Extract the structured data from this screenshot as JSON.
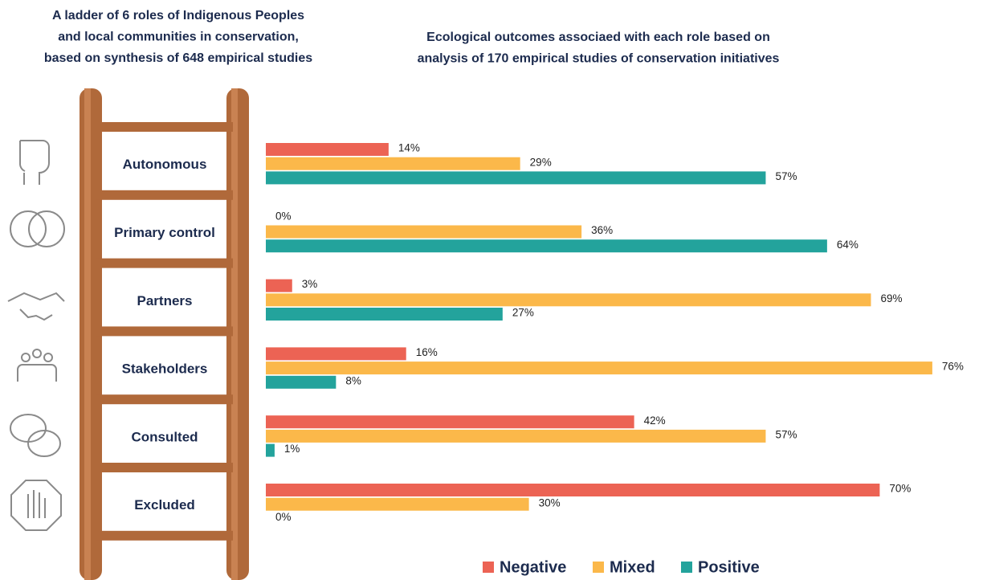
{
  "chart_data": {
    "type": "bar",
    "ladder_title": [
      "A ladder of 6 roles of Indigenous Peoples",
      "and local communities in conservation,",
      "based on synthesis of 648 empirical studies"
    ],
    "title": [
      "Ecological outcomes associaed with each role based on",
      "analysis of 170 empirical studies of conservation initiatives"
    ],
    "categories": [
      "Autonomous",
      "Primary control",
      "Partners",
      "Stakeholders",
      "Consulted",
      "Excluded"
    ],
    "series": [
      {
        "name": "Negative",
        "color": "#ec6354",
        "values": [
          14,
          0,
          3,
          16,
          42,
          70
        ],
        "value_labels": [
          "14%",
          "0%",
          "3%",
          "16%",
          "42%",
          "70%"
        ]
      },
      {
        "name": "Mixed",
        "color": "#fbb84a",
        "values": [
          29,
          36,
          69,
          76,
          57,
          30
        ],
        "value_labels": [
          "29%",
          "36%",
          "69%",
          "76%",
          "57%",
          "30%"
        ]
      },
      {
        "name": "Positive",
        "color": "#23a39c",
        "values": [
          57,
          64,
          27,
          8,
          1,
          0
        ],
        "value_labels": [
          "57%",
          "64%",
          "27%",
          "8%",
          "1%",
          "0%"
        ]
      }
    ]
  }
}
